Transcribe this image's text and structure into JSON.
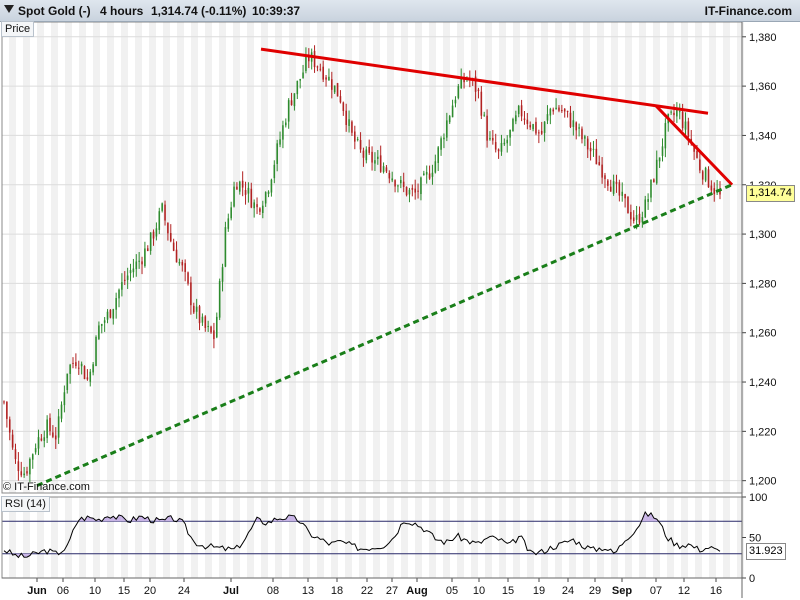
{
  "header": {
    "symbol": "Spot Gold (-)",
    "timeframe": "4 hours",
    "price_change": "1,314.74 (-0.11%)",
    "time": "10:39:37",
    "brand": "IT-Finance.com"
  },
  "copyright": "© IT-Finance.com",
  "colors": {
    "up_candle": "#2e8b2e",
    "down_candle": "#b22222",
    "resistance": "#e00000",
    "support": "#1a7f1a",
    "rsi_line": "#000000",
    "rsi_band_line": "#2a2a6a",
    "rsi_fill": "#c8b4e6",
    "last_price_bg": "#ffff99"
  },
  "chart_data": [
    {
      "type": "candlestick",
      "title": "Price",
      "ylim": [
        1195,
        1386
      ],
      "y_ticks": [
        "1,380",
        "1,360",
        "1,340",
        "1,320",
        "1,300",
        "1,280",
        "1,260",
        "1,240",
        "1,220",
        "1,200"
      ],
      "y_tick_values": [
        1380,
        1360,
        1340,
        1320,
        1300,
        1280,
        1260,
        1240,
        1220,
        1200
      ],
      "last_value": 1314.74,
      "last_label": "1,314.74",
      "x_labels": [
        "Jun",
        "06",
        "10",
        "15",
        "20",
        "24",
        "Jul",
        "08",
        "13",
        "18",
        "22",
        "27",
        "Aug",
        "05",
        "10",
        "15",
        "19",
        "24",
        "29",
        "Sep",
        "07",
        "12",
        "16"
      ],
      "close_path": [
        1232,
        1208,
        1203,
        1215,
        1222,
        1218,
        1245,
        1250,
        1240,
        1262,
        1268,
        1278,
        1285,
        1290,
        1298,
        1310,
        1295,
        1285,
        1270,
        1262,
        1258,
        1300,
        1322,
        1318,
        1310,
        1318,
        1335,
        1352,
        1362,
        1372,
        1368,
        1362,
        1355,
        1340,
        1332,
        1330,
        1328,
        1323,
        1318,
        1316,
        1322,
        1330,
        1345,
        1358,
        1364,
        1358,
        1338,
        1332,
        1340,
        1350,
        1345,
        1340,
        1352,
        1350,
        1345,
        1338,
        1332,
        1325,
        1318,
        1312,
        1305,
        1312,
        1328,
        1345,
        1350,
        1340,
        1328,
        1321,
        1315
      ],
      "trendlines": [
        {
          "kind": "resistance",
          "from": [
            "Jul 06",
            1375
          ],
          "to": [
            "Sep 15",
            1349
          ]
        },
        {
          "kind": "resistance",
          "from": [
            "Sep 07",
            1352
          ],
          "to": [
            "Sep 18",
            1320
          ]
        },
        {
          "kind": "support",
          "from": [
            "Jun 01",
            1198
          ],
          "to": [
            "Sep 18",
            1320
          ]
        }
      ]
    },
    {
      "type": "line",
      "title": "RSI (14)",
      "ylim": [
        0,
        100
      ],
      "y_ticks": [
        "100",
        "50",
        "0"
      ],
      "y_tick_values": [
        100,
        50,
        0
      ],
      "bands": [
        70,
        30
      ],
      "last_value": 31.923,
      "last_label": "31.923",
      "values": [
        35,
        28,
        26,
        30,
        34,
        30,
        38,
        72,
        75,
        72,
        78,
        74,
        71,
        76,
        72,
        70,
        74,
        68,
        45,
        40,
        38,
        36,
        35,
        50,
        72,
        68,
        74,
        75,
        72,
        55,
        48,
        42,
        45,
        40,
        36,
        38,
        40,
        50,
        72,
        68,
        60,
        48,
        44,
        52,
        46,
        42,
        50,
        48,
        40,
        52,
        30,
        32,
        38,
        42,
        48,
        40,
        35,
        38,
        30,
        48,
        60,
        80,
        74,
        50,
        40,
        42,
        35,
        38,
        32
      ]
    }
  ]
}
